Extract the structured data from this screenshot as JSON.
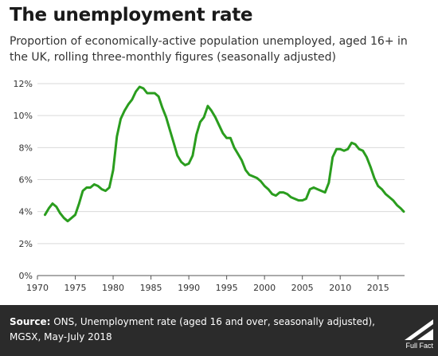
{
  "header": {
    "title": "The unemployment rate",
    "subtitle": "Proportion of economically-active population unemployed, aged 16+ in the UK, rolling three-monthly figures (seasonally adjusted)"
  },
  "footer": {
    "source_label": "Source:",
    "source_text": "ONS, Unemployment rate (aged 16 and over, seasonally adjusted), MGSX, May-July 2018",
    "logo_text": "Full Fact"
  },
  "colors": {
    "line": "#2a9d1e",
    "grid": "#d9d9d9",
    "footer_bg": "#2b2b2b"
  },
  "chart_data": {
    "type": "line",
    "title": "The unemployment rate",
    "xlabel": "",
    "ylabel": "",
    "xlim": [
      1970,
      2018.5
    ],
    "ylim": [
      0,
      12
    ],
    "x_ticks": [
      1970,
      1975,
      1980,
      1985,
      1990,
      1995,
      2000,
      2005,
      2010,
      2015
    ],
    "y_ticks": [
      0,
      2,
      4,
      6,
      8,
      10,
      12
    ],
    "y_tick_labels": [
      "0%",
      "2%",
      "4%",
      "6%",
      "8%",
      "10%",
      "12%"
    ],
    "grid": "horizontal",
    "series": [
      {
        "x": [
          1971.0,
          1971.5,
          1972.0,
          1972.5,
          1973.0,
          1973.5,
          1974.0,
          1974.5,
          1975.0,
          1975.5,
          1976.0,
          1976.5,
          1977.0,
          1977.5,
          1978.0,
          1978.5,
          1979.0,
          1979.5,
          1980.0,
          1980.5,
          1981.0,
          1981.5,
          1982.0,
          1982.5,
          1983.0,
          1983.5,
          1984.0,
          1984.5,
          1985.0,
          1985.5,
          1986.0,
          1986.5,
          1987.0,
          1987.5,
          1988.0,
          1988.5,
          1989.0,
          1989.5,
          1990.0,
          1990.5,
          1991.0,
          1991.5,
          1992.0,
          1992.5,
          1993.0,
          1993.5,
          1994.0,
          1994.5,
          1995.0,
          1995.5,
          1996.0,
          1996.5,
          1997.0,
          1997.5,
          1998.0,
          1998.5,
          1999.0,
          1999.5,
          2000.0,
          2000.5,
          2001.0,
          2001.5,
          2002.0,
          2002.5,
          2003.0,
          2003.5,
          2004.0,
          2004.5,
          2005.0,
          2005.5,
          2006.0,
          2006.5,
          2007.0,
          2007.5,
          2008.0,
          2008.5,
          2009.0,
          2009.5,
          2010.0,
          2010.5,
          2011.0,
          2011.5,
          2012.0,
          2012.5,
          2013.0,
          2013.5,
          2014.0,
          2014.5,
          2015.0,
          2015.5,
          2016.0,
          2016.5,
          2017.0,
          2017.5,
          2018.0,
          2018.4
        ],
        "values": [
          3.8,
          4.2,
          4.5,
          4.3,
          3.9,
          3.6,
          3.4,
          3.6,
          3.8,
          4.5,
          5.3,
          5.5,
          5.5,
          5.7,
          5.6,
          5.4,
          5.3,
          5.5,
          6.6,
          8.7,
          9.8,
          10.3,
          10.7,
          11.0,
          11.5,
          11.8,
          11.7,
          11.4,
          11.4,
          11.4,
          11.2,
          10.5,
          9.9,
          9.1,
          8.3,
          7.5,
          7.1,
          6.9,
          7.0,
          7.5,
          8.8,
          9.6,
          9.9,
          10.6,
          10.3,
          9.9,
          9.4,
          8.9,
          8.6,
          8.6,
          8.0,
          7.6,
          7.2,
          6.6,
          6.3,
          6.2,
          6.1,
          5.9,
          5.6,
          5.4,
          5.1,
          5.0,
          5.2,
          5.2,
          5.1,
          4.9,
          4.8,
          4.7,
          4.7,
          4.8,
          5.4,
          5.5,
          5.4,
          5.3,
          5.2,
          5.8,
          7.4,
          7.9,
          7.9,
          7.8,
          7.9,
          8.3,
          8.2,
          7.9,
          7.8,
          7.4,
          6.8,
          6.1,
          5.6,
          5.4,
          5.1,
          4.9,
          4.7,
          4.4,
          4.2,
          4.0
        ]
      }
    ]
  }
}
